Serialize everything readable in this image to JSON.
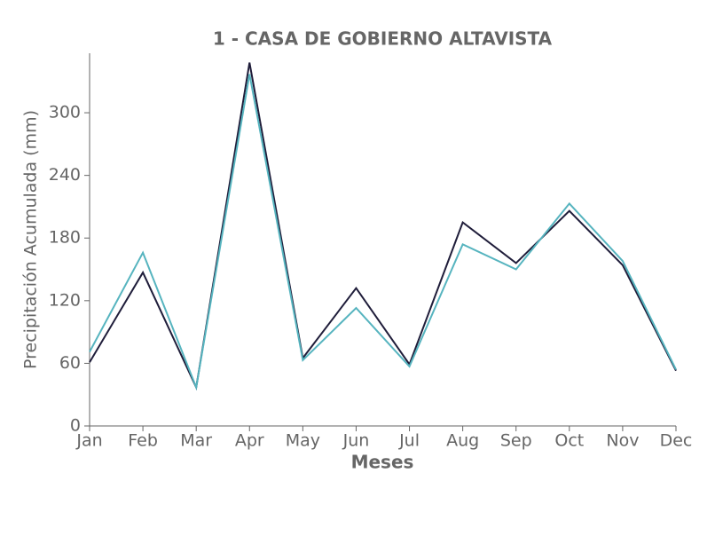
{
  "chart_data": {
    "type": "line",
    "title": "1 - CASA DE GOBIERNO ALTAVISTA",
    "xlabel": "Meses",
    "ylabel": "Precipitación Acumulada (mm)",
    "categories": [
      "Jan",
      "Feb",
      "Mar",
      "Apr",
      "May",
      "Jun",
      "Jul",
      "Aug",
      "Sep",
      "Oct",
      "Nov",
      "Dec"
    ],
    "series": [
      {
        "color": "#1f1d3a",
        "values": [
          61,
          147,
          37,
          348,
          65,
          132,
          59,
          195,
          156,
          206,
          154,
          53
        ]
      },
      {
        "color": "#56b4bf",
        "values": [
          71,
          166,
          37,
          337,
          63,
          113,
          57,
          174,
          150,
          213,
          158,
          54
        ]
      }
    ],
    "ylim": [
      0,
      357
    ],
    "yticks": [
      0,
      60,
      120,
      180,
      240,
      300
    ]
  }
}
